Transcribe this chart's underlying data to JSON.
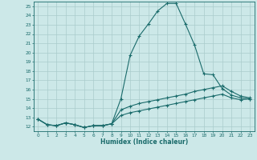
{
  "xlabel": "Humidex (Indice chaleur)",
  "bg_color": "#cce8e8",
  "grid_color": "#aacccc",
  "line_color": "#1a6b6b",
  "xlim": [
    -0.5,
    23.5
  ],
  "ylim": [
    11.5,
    25.5
  ],
  "yticks": [
    12,
    13,
    14,
    15,
    16,
    17,
    18,
    19,
    20,
    21,
    22,
    23,
    24,
    25
  ],
  "xticks": [
    0,
    1,
    2,
    3,
    4,
    5,
    6,
    7,
    8,
    9,
    10,
    11,
    12,
    13,
    14,
    15,
    16,
    17,
    18,
    19,
    20,
    21,
    22,
    23
  ],
  "curve1_x": [
    0,
    1,
    2,
    3,
    4,
    5,
    6,
    7,
    8,
    9,
    10,
    11,
    12,
    13,
    14,
    15,
    16,
    17,
    18,
    19,
    20,
    21,
    22,
    23
  ],
  "curve1_y": [
    12.8,
    12.2,
    12.1,
    12.4,
    12.2,
    11.9,
    12.1,
    12.1,
    12.3,
    15.0,
    19.7,
    21.8,
    23.1,
    24.5,
    25.3,
    25.3,
    23.1,
    20.8,
    17.7,
    17.6,
    16.1,
    15.4,
    15.1,
    15.0
  ],
  "curve2_x": [
    0,
    1,
    2,
    3,
    4,
    5,
    6,
    7,
    8,
    9,
    10,
    11,
    12,
    13,
    14,
    15,
    16,
    17,
    18,
    19,
    20,
    21,
    22,
    23
  ],
  "curve2_y": [
    12.8,
    12.2,
    12.1,
    12.4,
    12.2,
    11.9,
    12.1,
    12.1,
    12.3,
    13.8,
    14.2,
    14.5,
    14.7,
    14.9,
    15.1,
    15.3,
    15.5,
    15.8,
    16.0,
    16.2,
    16.4,
    15.8,
    15.3,
    15.1
  ],
  "curve3_x": [
    0,
    1,
    2,
    3,
    4,
    5,
    6,
    7,
    8,
    9,
    10,
    11,
    12,
    13,
    14,
    15,
    16,
    17,
    18,
    19,
    20,
    21,
    22,
    23
  ],
  "curve3_y": [
    12.8,
    12.2,
    12.1,
    12.4,
    12.2,
    11.9,
    12.1,
    12.1,
    12.3,
    13.2,
    13.5,
    13.7,
    13.9,
    14.1,
    14.3,
    14.5,
    14.7,
    14.9,
    15.1,
    15.3,
    15.5,
    15.1,
    14.9,
    15.0
  ]
}
